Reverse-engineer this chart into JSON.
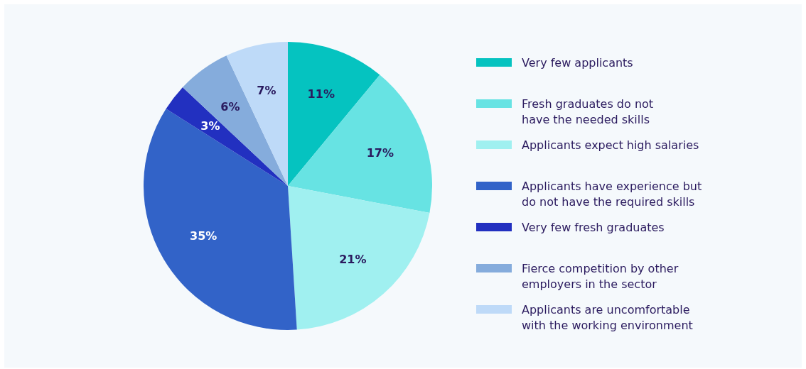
{
  "chart_data": {
    "type": "pie",
    "categories": [
      "Very few applicants",
      "Fresh graduates do not\nhave the needed skills",
      "Applicants expect high salaries",
      "Applicants have experience but\ndo not have the required skills",
      "Very few fresh graduates",
      "Fierce competition by other\nemployers in the sector",
      "Applicants are uncomfortable\nwith the working environment"
    ],
    "values": [
      11,
      17,
      21,
      35,
      3,
      6,
      7
    ],
    "colors": [
      "#05c3c0",
      "#67e3e3",
      "#a0f0f0",
      "#3263c8",
      "#2230c0",
      "#85acdc",
      "#bedaf8"
    ],
    "value_labels": [
      "11%",
      "17%",
      "21%",
      "35%",
      "3%",
      "6%",
      "7%"
    ],
    "legend": "right"
  }
}
